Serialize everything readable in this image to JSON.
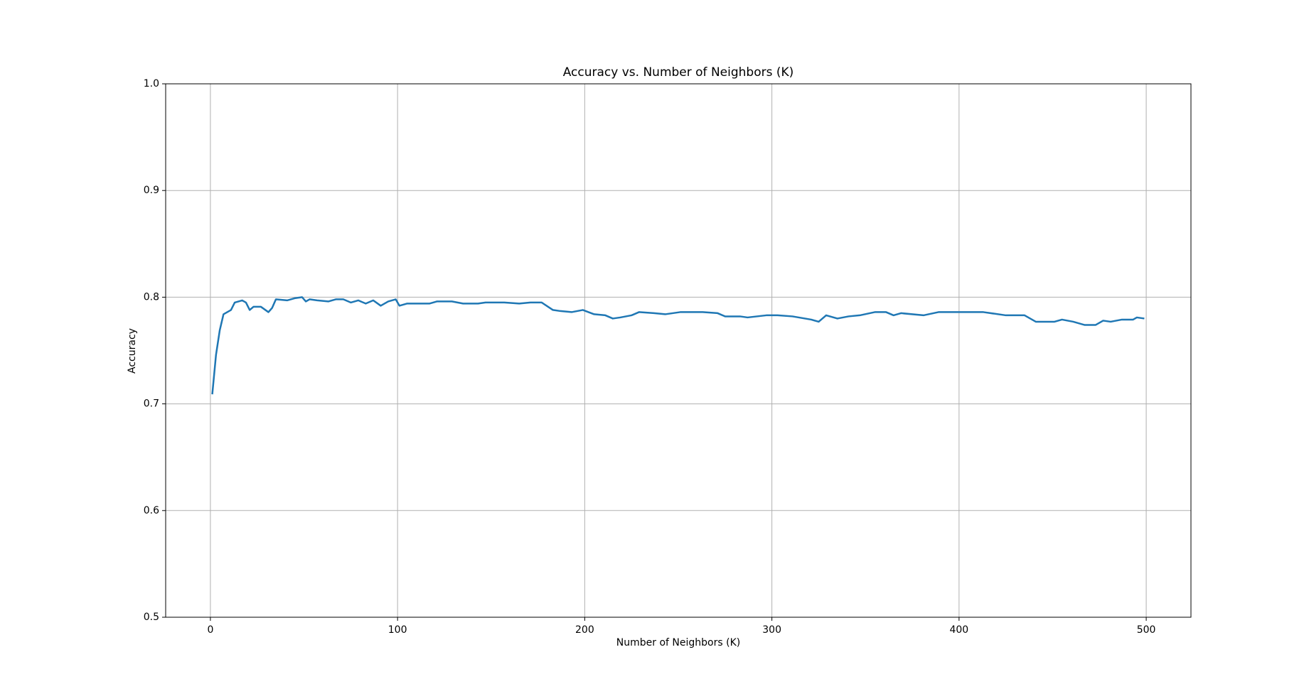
{
  "chart_data": {
    "type": "line",
    "title": "Accuracy vs. Number of Neighbors (K)",
    "x_label": "Number of Neighbors (K)",
    "y_label": "Accuracy",
    "x": [
      1,
      3,
      5,
      7,
      11,
      13,
      17,
      19,
      21,
      23,
      27,
      31,
      33,
      35,
      41,
      45,
      49,
      51,
      53,
      57,
      63,
      67,
      71,
      75,
      79,
      83,
      87,
      91,
      95,
      99,
      101,
      105,
      111,
      117,
      121,
      129,
      135,
      143,
      147,
      157,
      165,
      171,
      177,
      183,
      187,
      193,
      199,
      205,
      211,
      215,
      219,
      225,
      229,
      237,
      243,
      251,
      263,
      271,
      275,
      283,
      287,
      297,
      303,
      311,
      321,
      325,
      329,
      335,
      341,
      347,
      355,
      361,
      365,
      369,
      381,
      389,
      401,
      413,
      425,
      435,
      441,
      451,
      455,
      461,
      467,
      473,
      477,
      481,
      487,
      493,
      495,
      499
    ],
    "series": [
      {
        "name": "Accuracy",
        "color": "#1f77b4",
        "values": [
          0.709,
          0.746,
          0.769,
          0.784,
          0.788,
          0.795,
          0.797,
          0.795,
          0.788,
          0.791,
          0.791,
          0.786,
          0.79,
          0.798,
          0.797,
          0.799,
          0.8,
          0.796,
          0.798,
          0.797,
          0.796,
          0.798,
          0.798,
          0.795,
          0.797,
          0.794,
          0.797,
          0.792,
          0.796,
          0.798,
          0.792,
          0.794,
          0.794,
          0.794,
          0.796,
          0.796,
          0.794,
          0.794,
          0.795,
          0.795,
          0.794,
          0.795,
          0.795,
          0.788,
          0.787,
          0.786,
          0.788,
          0.784,
          0.783,
          0.78,
          0.781,
          0.783,
          0.786,
          0.785,
          0.784,
          0.786,
          0.786,
          0.785,
          0.782,
          0.782,
          0.781,
          0.783,
          0.783,
          0.782,
          0.779,
          0.777,
          0.783,
          0.78,
          0.782,
          0.783,
          0.786,
          0.786,
          0.783,
          0.785,
          0.783,
          0.786,
          0.786,
          0.786,
          0.783,
          0.783,
          0.777,
          0.777,
          0.779,
          0.777,
          0.774,
          0.774,
          0.778,
          0.777,
          0.779,
          0.779,
          0.781,
          0.78
        ]
      }
    ],
    "xlim": [
      -23.9,
      523.9
    ],
    "xticks": [
      0,
      100,
      200,
      300,
      400,
      500
    ],
    "ylim": [
      0.5,
      1.0
    ],
    "yticks": [
      0.5,
      0.6,
      0.7,
      0.8,
      0.9,
      {
        "value": 1.0,
        "label": "1.0"
      }
    ],
    "grid": true
  }
}
